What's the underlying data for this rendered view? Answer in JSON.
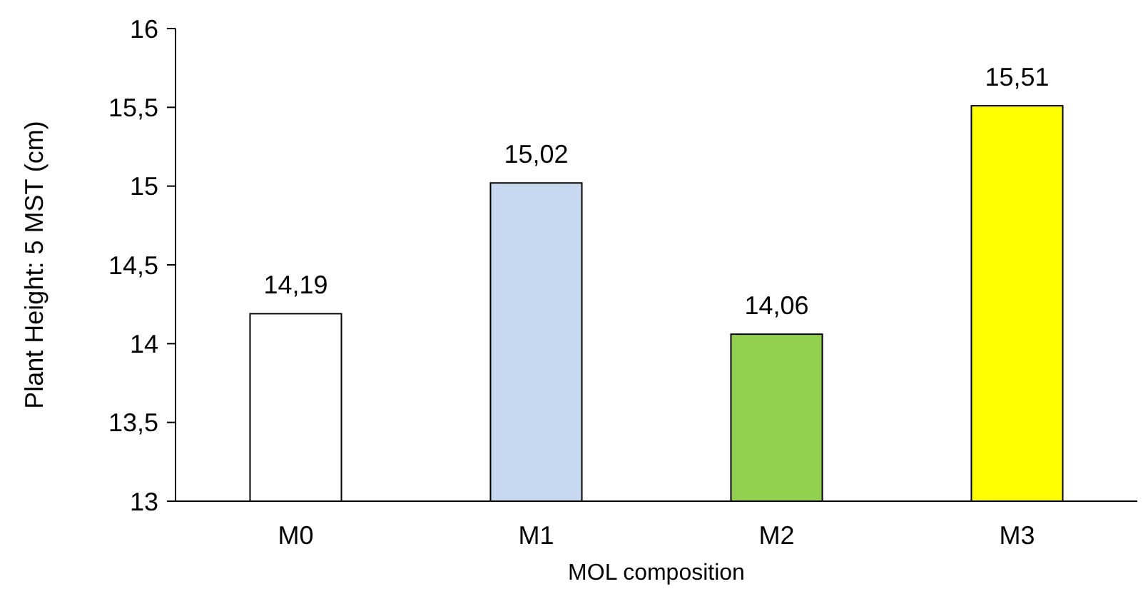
{
  "chart_data": {
    "type": "bar",
    "xlabel": "MOL composition",
    "ylabel": "Plant Height: 5 MST (cm)",
    "categories": [
      "M0",
      "M1",
      "M2",
      "M3"
    ],
    "values": [
      14.19,
      15.02,
      14.06,
      15.51
    ],
    "value_labels": [
      "14,19",
      "15,02",
      "14,06",
      "15,51"
    ],
    "colors": [
      "#ffffff",
      "#c6d9f1",
      "#92d050",
      "#ffff00"
    ],
    "ylim": [
      13,
      16
    ],
    "yticks": [
      13,
      {
        "value": 13.5,
        "label": "13,5"
      },
      14,
      {
        "value": 14.5,
        "label": "14,5"
      },
      15,
      {
        "value": 15.5,
        "label": "15,5"
      },
      16
    ],
    "grid": false
  }
}
